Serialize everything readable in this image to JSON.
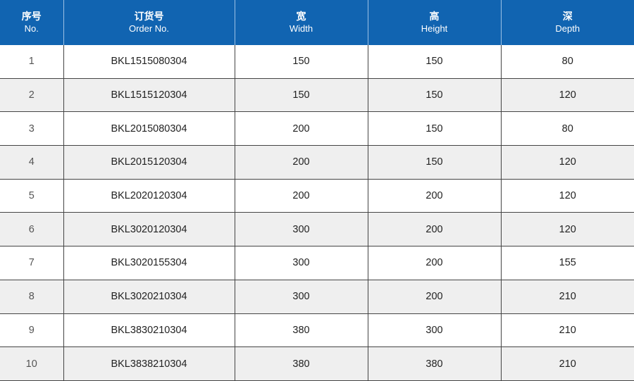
{
  "header": [
    {
      "zh": "序号",
      "en": "No."
    },
    {
      "zh": "订货号",
      "en": "Order No."
    },
    {
      "zh": "宽",
      "en": "Width"
    },
    {
      "zh": "高",
      "en": "Height"
    },
    {
      "zh": "深",
      "en": "Depth"
    }
  ],
  "rows": [
    [
      "1",
      "BKL1515080304",
      "150",
      "150",
      "80"
    ],
    [
      "2",
      "BKL1515120304",
      "150",
      "150",
      "120"
    ],
    [
      "3",
      "BKL2015080304",
      "200",
      "150",
      "80"
    ],
    [
      "4",
      "BKL2015120304",
      "200",
      "150",
      "120"
    ],
    [
      "5",
      "BKL2020120304",
      "200",
      "200",
      "120"
    ],
    [
      "6",
      "BKL3020120304",
      "300",
      "200",
      "120"
    ],
    [
      "7",
      "BKL3020155304",
      "300",
      "200",
      "155"
    ],
    [
      "8",
      "BKL3020210304",
      "300",
      "200",
      "210"
    ],
    [
      "9",
      "BKL3830210304",
      "380",
      "300",
      "210"
    ],
    [
      "10",
      "BKL3838210304",
      "380",
      "380",
      "210"
    ]
  ],
  "colors": {
    "header_bg": "#1164b1",
    "alt_row_bg": "#efefef"
  }
}
